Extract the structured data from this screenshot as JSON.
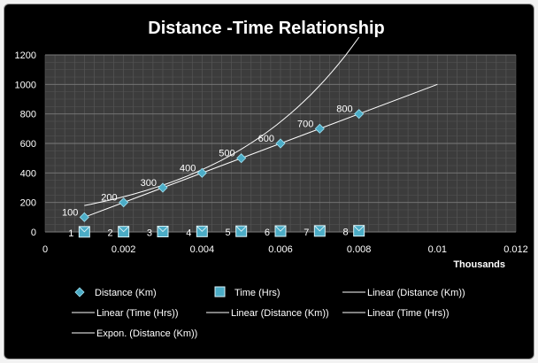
{
  "chart_data": {
    "type": "scatter",
    "title": "Distance -Time Relationship",
    "x_unit_label": "Thousands",
    "xlim": [
      0,
      0.012
    ],
    "ylim": [
      0,
      1200
    ],
    "x_ticks": [
      "0",
      "0.002",
      "0.004",
      "0.006",
      "0.008",
      "0.01",
      "0.012"
    ],
    "y_ticks": [
      "0",
      "200",
      "400",
      "600",
      "800",
      "1000",
      "1200"
    ],
    "grid": true,
    "legend_position": "bottom",
    "series": [
      {
        "name": "Distance (Km)",
        "marker": "diamond",
        "color": "#4bacc6",
        "x": [
          0.001,
          0.002,
          0.003,
          0.004,
          0.005,
          0.006,
          0.007,
          0.008
        ],
        "y": [
          100,
          200,
          300,
          400,
          500,
          600,
          700,
          800
        ],
        "labels": [
          "100",
          "200",
          "300",
          "400",
          "500",
          "600",
          "700",
          "800"
        ]
      },
      {
        "name": "Time (Hrs)",
        "marker": "square",
        "color": "#4bacc6",
        "x": [
          0.001,
          0.002,
          0.003,
          0.004,
          0.005,
          0.006,
          0.007,
          0.008
        ],
        "y": [
          1,
          2,
          3,
          4,
          5,
          6,
          7,
          8
        ],
        "labels": [
          "1",
          "2",
          "3",
          "4",
          "5",
          "6",
          "7",
          "8"
        ]
      }
    ],
    "trendlines": [
      {
        "name": "Linear (Distance (Km))",
        "type": "linear",
        "x": [
          0.001,
          0.01
        ],
        "y": [
          100,
          1000
        ]
      },
      {
        "name": "Expon. (Distance (Km))",
        "type": "exponential",
        "x": [
          0.001,
          0.008
        ],
        "a": 135,
        "b": 285
      }
    ],
    "legend": [
      "Distance (Km)",
      "Time (Hrs)",
      "Linear (Distance (Km))",
      "Linear (Time (Hrs))",
      "Linear (Distance (Km))",
      "Linear (Time (Hrs))",
      "Expon. (Distance (Km))"
    ]
  }
}
